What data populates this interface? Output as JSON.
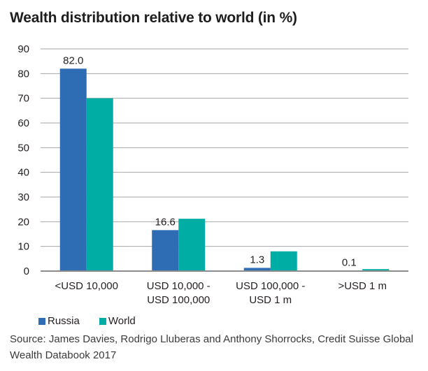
{
  "chart_data": {
    "type": "bar",
    "title": "Wealth distribution relative to world (in %)",
    "xlabel": "",
    "ylabel": "",
    "ylim": [
      0,
      90
    ],
    "yticks": [
      0,
      10,
      20,
      30,
      40,
      50,
      60,
      70,
      80,
      90
    ],
    "grid": true,
    "categories": [
      [
        "<USD 10,000"
      ],
      [
        "USD 10,000 -",
        "USD 100,000"
      ],
      [
        "USD 100,000 -",
        "USD 1 m"
      ],
      [
        ">USD 1 m"
      ]
    ],
    "series": [
      {
        "name": "Russia",
        "color": "#2e6db4",
        "values": [
          82.0,
          16.6,
          1.3,
          0.1
        ],
        "labels": [
          "82.0",
          "16.6",
          "1.3",
          "0.1"
        ]
      },
      {
        "name": "World",
        "color": "#00ada5",
        "values": [
          70.0,
          21.2,
          8.0,
          0.8
        ]
      }
    ],
    "legend_position": "bottom-left"
  },
  "title": "Wealth distribution relative to world (in %)",
  "legend": [
    {
      "label": "Russia",
      "color": "#2e6db4"
    },
    {
      "label": "World",
      "color": "#00ada5"
    }
  ],
  "source": "Source: James Davies, Rodrigo Lluberas and Anthony Shorrocks, Credit Suisse Global Wealth Databook 2017"
}
